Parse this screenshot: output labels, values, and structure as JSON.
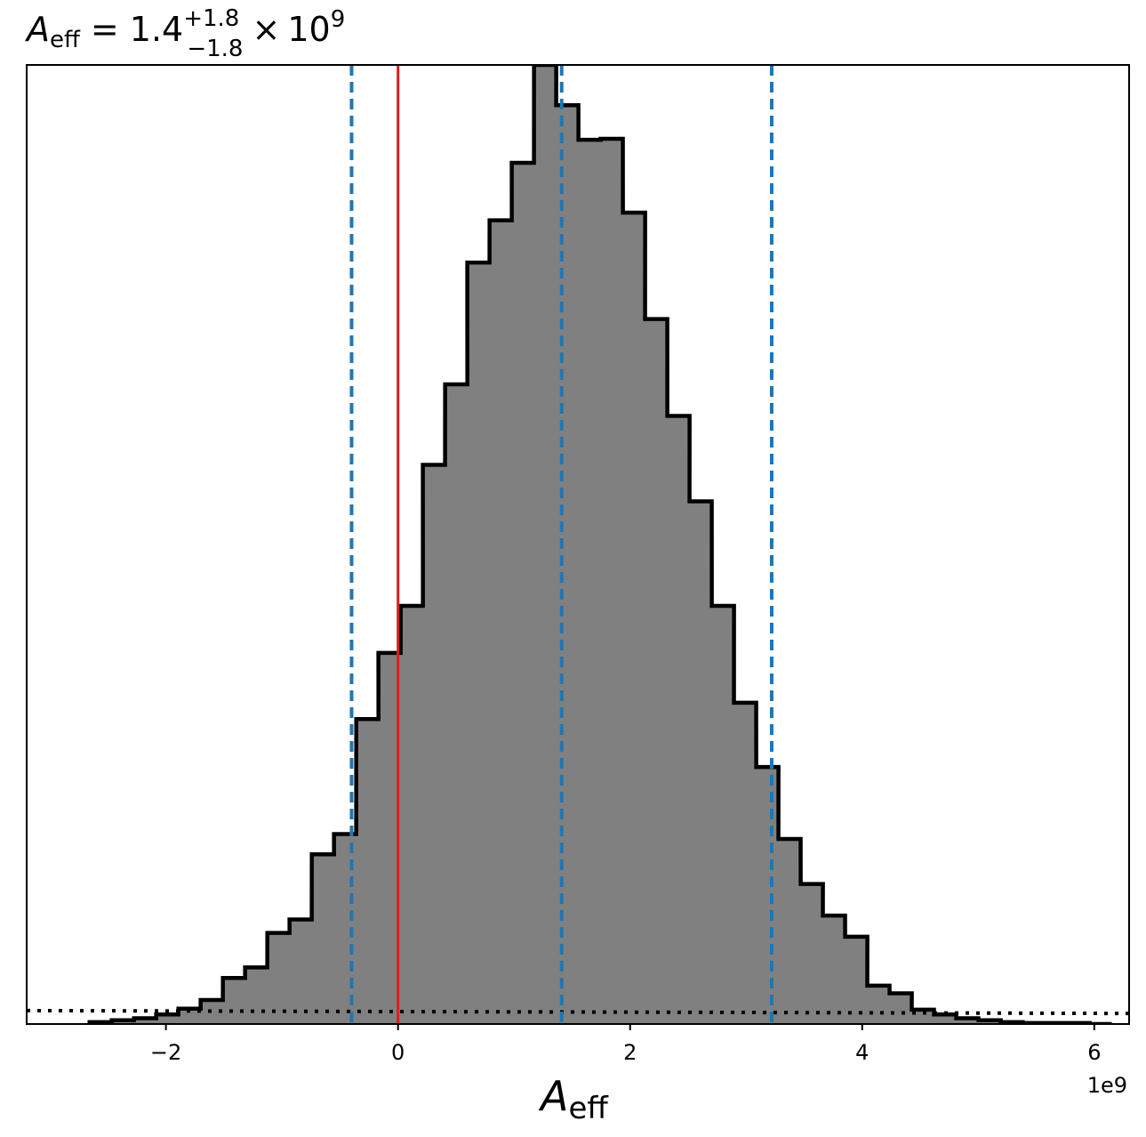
{
  "chart_data": {
    "type": "histogram",
    "title": {
      "symbol": "A",
      "subscript": "eff",
      "equals": "=",
      "value": "1.4",
      "upper": "+1.8",
      "lower": "−1.8",
      "times": "×",
      "base": "10",
      "exponent": "9"
    },
    "xlabel": {
      "symbol": "A",
      "subscript": "eff"
    },
    "xlim": [
      -3.2,
      6.3
    ],
    "x_offset_label": "1e9",
    "x_ticks": [
      {
        "value": -2,
        "label": "−2"
      },
      {
        "value": 0,
        "label": "0"
      },
      {
        "value": 2,
        "label": "2"
      },
      {
        "value": 4,
        "label": "4"
      },
      {
        "value": 6,
        "label": "6"
      }
    ],
    "y_axis_visible": false,
    "ylim": [
      0,
      1.0
    ],
    "bin_width": 0.1915,
    "bins": [
      {
        "x0": -2.658,
        "count": 0.002
      },
      {
        "x0": -2.467,
        "count": 0.004
      },
      {
        "x0": -2.275,
        "count": 0.006
      },
      {
        "x0": -2.084,
        "count": 0.01
      },
      {
        "x0": -1.892,
        "count": 0.016
      },
      {
        "x0": -1.701,
        "count": 0.025
      },
      {
        "x0": -1.509,
        "count": 0.048
      },
      {
        "x0": -1.318,
        "count": 0.059
      },
      {
        "x0": -1.126,
        "count": 0.095
      },
      {
        "x0": -0.935,
        "count": 0.109
      },
      {
        "x0": -0.743,
        "count": 0.177
      },
      {
        "x0": -0.552,
        "count": 0.198
      },
      {
        "x0": -0.36,
        "count": 0.318
      },
      {
        "x0": -0.169,
        "count": 0.387
      },
      {
        "x0": 0.023,
        "count": 0.436
      },
      {
        "x0": 0.214,
        "count": 0.583
      },
      {
        "x0": 0.406,
        "count": 0.667
      },
      {
        "x0": 0.597,
        "count": 0.794
      },
      {
        "x0": 0.789,
        "count": 0.838
      },
      {
        "x0": 0.98,
        "count": 0.898
      },
      {
        "x0": 1.172,
        "count": 1.0
      },
      {
        "x0": 1.363,
        "count": 0.958
      },
      {
        "x0": 1.555,
        "count": 0.922
      },
      {
        "x0": 1.746,
        "count": 0.923
      },
      {
        "x0": 1.938,
        "count": 0.846
      },
      {
        "x0": 2.129,
        "count": 0.735
      },
      {
        "x0": 2.321,
        "count": 0.634
      },
      {
        "x0": 2.512,
        "count": 0.545
      },
      {
        "x0": 2.704,
        "count": 0.436
      },
      {
        "x0": 2.895,
        "count": 0.335
      },
      {
        "x0": 3.087,
        "count": 0.268
      },
      {
        "x0": 3.278,
        "count": 0.193
      },
      {
        "x0": 3.47,
        "count": 0.146
      },
      {
        "x0": 3.661,
        "count": 0.113
      },
      {
        "x0": 3.853,
        "count": 0.091
      },
      {
        "x0": 4.044,
        "count": 0.04
      },
      {
        "x0": 4.236,
        "count": 0.032
      },
      {
        "x0": 4.427,
        "count": 0.015
      },
      {
        "x0": 4.619,
        "count": 0.01
      },
      {
        "x0": 4.81,
        "count": 0.006
      },
      {
        "x0": 5.002,
        "count": 0.004
      },
      {
        "x0": 5.193,
        "count": 0.002
      },
      {
        "x0": 5.385,
        "count": 0.001
      },
      {
        "x0": 5.576,
        "count": 0.001
      },
      {
        "x0": 5.768,
        "count": 0.001
      },
      {
        "x0": 5.959,
        "count": 0.0
      }
    ],
    "reference_lines": [
      {
        "kind": "truth",
        "x": 0.0,
        "color": "#e41a1c",
        "style": "solid"
      },
      {
        "kind": "quantile",
        "x": -0.4,
        "color": "#1f77b4",
        "style": "dashed"
      },
      {
        "kind": "median",
        "x": 1.41,
        "color": "#1f77b4",
        "style": "dashed"
      },
      {
        "kind": "quantile",
        "x": 3.22,
        "color": "#1f77b4",
        "style": "dashed"
      }
    ],
    "prior_line": {
      "y_start": 0.014,
      "y_end": 0.011,
      "color": "#000000",
      "style": "dotted"
    },
    "colors": {
      "fill": "#808080",
      "edge": "#000000"
    }
  }
}
